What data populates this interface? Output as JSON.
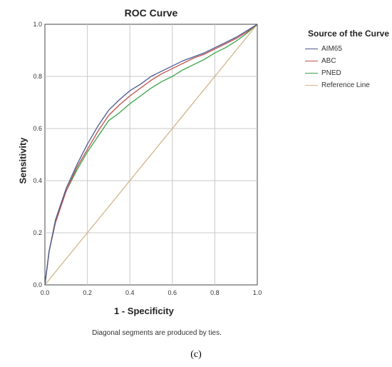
{
  "chart_data": {
    "type": "line",
    "title": "ROC Curve",
    "xlabel": "1 - Specificity",
    "ylabel": "Sensitivity",
    "xlim": [
      0,
      1
    ],
    "ylim": [
      0,
      1
    ],
    "x_ticks": [
      "0.0",
      "0.2",
      "0.4",
      "0.6",
      "0.8",
      "1.0"
    ],
    "y_ticks": [
      "0.0",
      "0.2",
      "0.4",
      "0.6",
      "0.8",
      "1.0"
    ],
    "grid": true,
    "legend": {
      "title": "Source of the Curve",
      "placement": "right"
    },
    "series": [
      {
        "name": "AIM65",
        "color": "#4a5a90",
        "x": [
          0,
          0.02,
          0.05,
          0.1,
          0.15,
          0.2,
          0.25,
          0.3,
          0.35,
          0.4,
          0.45,
          0.5,
          0.55,
          0.6,
          0.65,
          0.7,
          0.75,
          0.8,
          0.85,
          0.9,
          0.95,
          1
        ],
        "y": [
          0,
          0.13,
          0.25,
          0.37,
          0.46,
          0.54,
          0.61,
          0.67,
          0.71,
          0.745,
          0.77,
          0.8,
          0.82,
          0.84,
          0.86,
          0.875,
          0.89,
          0.91,
          0.93,
          0.95,
          0.975,
          1
        ]
      },
      {
        "name": "ABC",
        "color": "#c0504d",
        "x": [
          0,
          0.02,
          0.05,
          0.1,
          0.15,
          0.2,
          0.25,
          0.3,
          0.35,
          0.4,
          0.45,
          0.5,
          0.55,
          0.6,
          0.65,
          0.7,
          0.75,
          0.8,
          0.85,
          0.9,
          0.95,
          1
        ],
        "y": [
          0,
          0.13,
          0.24,
          0.36,
          0.45,
          0.52,
          0.59,
          0.65,
          0.69,
          0.725,
          0.755,
          0.785,
          0.81,
          0.83,
          0.85,
          0.87,
          0.885,
          0.905,
          0.925,
          0.945,
          0.97,
          1
        ]
      },
      {
        "name": "PNED",
        "color": "#3aa34a",
        "x": [
          0,
          0.02,
          0.05,
          0.1,
          0.15,
          0.2,
          0.25,
          0.3,
          0.35,
          0.4,
          0.45,
          0.5,
          0.55,
          0.6,
          0.65,
          0.7,
          0.75,
          0.8,
          0.85,
          0.9,
          0.95,
          1
        ],
        "y": [
          0,
          0.13,
          0.24,
          0.36,
          0.44,
          0.51,
          0.57,
          0.63,
          0.66,
          0.695,
          0.725,
          0.755,
          0.78,
          0.8,
          0.825,
          0.845,
          0.865,
          0.89,
          0.91,
          0.935,
          0.965,
          1
        ]
      },
      {
        "name": "Reference Line",
        "color": "#d4b48a",
        "x": [
          0,
          1
        ],
        "y": [
          0,
          1
        ]
      }
    ],
    "annotations": [
      "Diagonal segments are produced by ties."
    ]
  },
  "caption": "(c)"
}
